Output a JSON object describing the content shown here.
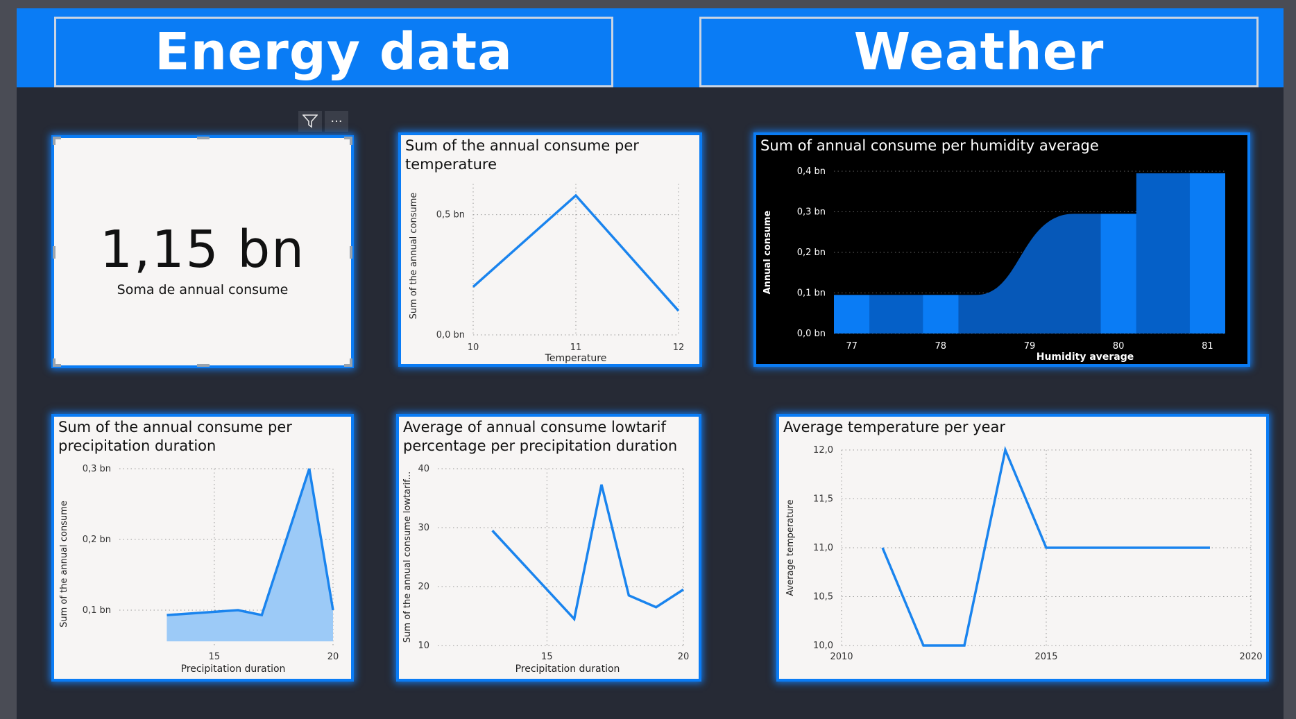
{
  "header": {
    "energy_title": "Energy data",
    "weather_title": "Weather"
  },
  "visual_header": {
    "filter_icon": "filter-icon",
    "more_icon": "more-options-icon",
    "more_glyph": "···"
  },
  "kpi": {
    "value": "1,15 bn",
    "label": "Soma de annual consume"
  },
  "colors": {
    "accent": "#0a7cf5",
    "background": "#262a35",
    "card": "#f7f5f4",
    "area_fill": "#9ccaf7"
  },
  "chart_data": [
    {
      "id": "temp",
      "type": "line",
      "title": "Sum of the annual consume per temperature",
      "title_lines": [
        "Sum of the annual consume per",
        "temperature"
      ],
      "xlabel": "Temperature",
      "ylabel": "Sum of the annual consume",
      "x": [
        10,
        11,
        12
      ],
      "values": [
        0.2,
        0.58,
        0.1
      ],
      "xlim": [
        10,
        12
      ],
      "ylim": [
        0,
        0.6
      ],
      "xticks": [
        "10",
        "11",
        "12"
      ],
      "yticks": [
        {
          "v": 0.0,
          "label": "0,0 bn"
        },
        {
          "v": 0.5,
          "label": "0,5 bn"
        }
      ],
      "grid": true
    },
    {
      "id": "humidity",
      "type": "area",
      "title": "Sum of annual consume per humidity average",
      "xlabel": "Humidity average",
      "ylabel": "Annual consume",
      "categories": [
        "77",
        "78",
        "79",
        "80",
        "81"
      ],
      "bands": [
        {
          "x0": 76.8,
          "x1": 77.2,
          "v": 0.095
        },
        {
          "x0": 77.2,
          "x1": 77.8,
          "v": 0.095
        },
        {
          "x0": 77.8,
          "x1": 78.2,
          "v": 0.095
        },
        {
          "x0": 78.2,
          "x1": 79.8,
          "v": 0.295
        },
        {
          "x0": 79.8,
          "x1": 80.2,
          "v": 0.295
        },
        {
          "x0": 80.2,
          "x1": 80.8,
          "v": 0.395
        },
        {
          "x0": 80.8,
          "x1": 81.2,
          "v": 0.395
        }
      ],
      "xlim": [
        76.8,
        81.2
      ],
      "ylim": [
        0,
        0.4
      ],
      "yticks": [
        {
          "v": 0.0,
          "label": "0,0 bn"
        },
        {
          "v": 0.1,
          "label": "0,1 bn"
        },
        {
          "v": 0.2,
          "label": "0,2 bn"
        },
        {
          "v": 0.3,
          "label": "0,3 bn"
        },
        {
          "v": 0.4,
          "label": "0,4 bn"
        }
      ],
      "grid": true
    },
    {
      "id": "precip",
      "type": "area",
      "title": "Sum of the annual consume per precipitation duration",
      "title_lines": [
        "Sum of the annual consume per",
        "precipitation duration"
      ],
      "xlabel": "Precipitation duration",
      "ylabel": "Sum of the annual consume",
      "x": [
        13,
        16,
        17,
        19,
        20
      ],
      "values": [
        0.093,
        0.1,
        0.093,
        0.3,
        0.1
      ],
      "xlim": [
        11,
        20
      ],
      "ylim": [
        0.05,
        0.3
      ],
      "xticks": [
        {
          "v": 15,
          "label": "15"
        },
        {
          "v": 20,
          "label": "20"
        }
      ],
      "yticks": [
        {
          "v": 0.1,
          "label": "0,1 bn"
        },
        {
          "v": 0.2,
          "label": "0,2 bn"
        },
        {
          "v": 0.3,
          "label": "0,3 bn"
        }
      ],
      "grid": true
    },
    {
      "id": "lowtarif",
      "type": "line",
      "title": "Average of annual consume lowtarif percentage per precipitation duration",
      "title_lines": [
        "Average of annual consume lowtarif",
        "percentage per precipitation duration"
      ],
      "xlabel": "Precipitation duration",
      "ylabel": "Sum of the annual consume lowtarif...",
      "x": [
        13,
        16,
        17,
        18,
        19,
        20
      ],
      "values": [
        29.5,
        14.5,
        37.3,
        18.5,
        16.5,
        19.5
      ],
      "xlim": [
        11,
        20
      ],
      "ylim": [
        10,
        40
      ],
      "xticks": [
        {
          "v": 15,
          "label": "15"
        },
        {
          "v": 20,
          "label": "20"
        }
      ],
      "yticks": [
        {
          "v": 10,
          "label": "10"
        },
        {
          "v": 20,
          "label": "20"
        },
        {
          "v": 30,
          "label": "30"
        },
        {
          "v": 40,
          "label": "40"
        }
      ],
      "grid": true
    },
    {
      "id": "avgtemp",
      "type": "line",
      "title": "Average temperature per year",
      "xlabel": "",
      "ylabel": "Average temperature",
      "x": [
        2011,
        2012,
        2013,
        2014,
        2015,
        2016,
        2017,
        2018,
        2019
      ],
      "values": [
        11.0,
        10.0,
        10.0,
        12.0,
        11.0,
        11.0,
        11.0,
        11.0,
        11.0
      ],
      "xlim": [
        2010,
        2020
      ],
      "ylim": [
        10,
        12
      ],
      "xticks": [
        {
          "v": 2010,
          "label": "2010"
        },
        {
          "v": 2015,
          "label": "2015"
        },
        {
          "v": 2020,
          "label": "2020"
        }
      ],
      "yticks": [
        {
          "v": 10.0,
          "label": "10,0"
        },
        {
          "v": 10.5,
          "label": "10,5"
        },
        {
          "v": 11.0,
          "label": "11,0"
        },
        {
          "v": 11.5,
          "label": "11,5"
        },
        {
          "v": 12.0,
          "label": "12,0"
        }
      ],
      "grid": true
    }
  ]
}
